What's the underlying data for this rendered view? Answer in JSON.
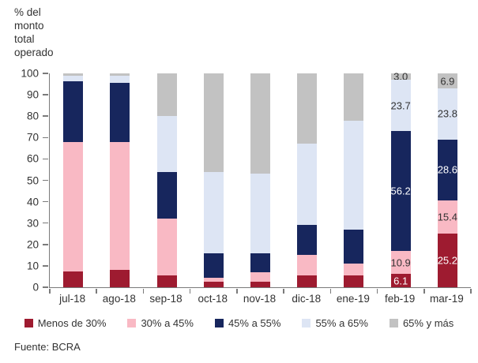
{
  "ylabel": "% del monto total operado",
  "source": "Fuente: BCRA",
  "colors": {
    "axis": "#7a7a7a",
    "text": "#333333"
  },
  "chart_data": {
    "type": "bar",
    "stacked": true,
    "title": "",
    "xlabel": "",
    "ylabel": "% del monto total operado",
    "ylim": [
      0,
      100
    ],
    "ytick_step": 10,
    "grid": false,
    "legend_position": "bottom",
    "categories": [
      "jul-18",
      "ago-18",
      "sep-18",
      "oct-18",
      "nov-18",
      "dic-18",
      "ene-19",
      "feb-19",
      "mar-19"
    ],
    "labeled_categories": [
      "feb-19",
      "mar-19"
    ],
    "series": [
      {
        "name": "Menos de 30%",
        "color": "#9e1b30",
        "label_color": "#ffffff",
        "values": [
          7.5,
          8.0,
          5.5,
          2.5,
          2.5,
          5.5,
          5.5,
          6.1,
          25.2
        ]
      },
      {
        "name": "30% a 45%",
        "color": "#f9b9c4",
        "label_color": "#333333",
        "values": [
          60.5,
          60.0,
          26.5,
          2.0,
          4.5,
          9.5,
          5.5,
          10.9,
          15.4
        ]
      },
      {
        "name": "45% a 55%",
        "color": "#17265d",
        "label_color": "#ffffff",
        "values": [
          28.5,
          27.5,
          22.0,
          11.5,
          9.0,
          14.0,
          16.0,
          56.2,
          28.6
        ]
      },
      {
        "name": "55% a 65%",
        "color": "#dde5f4",
        "label_color": "#333333",
        "values": [
          2.5,
          3.5,
          26.0,
          38.0,
          37.0,
          38.0,
          51.0,
          23.7,
          23.8
        ]
      },
      {
        "name": "65% y más",
        "color": "#c2c2c2",
        "label_color": "#333333",
        "values": [
          1.0,
          1.0,
          20.0,
          46.0,
          47.0,
          33.0,
          22.0,
          3.0,
          6.9
        ]
      }
    ]
  }
}
